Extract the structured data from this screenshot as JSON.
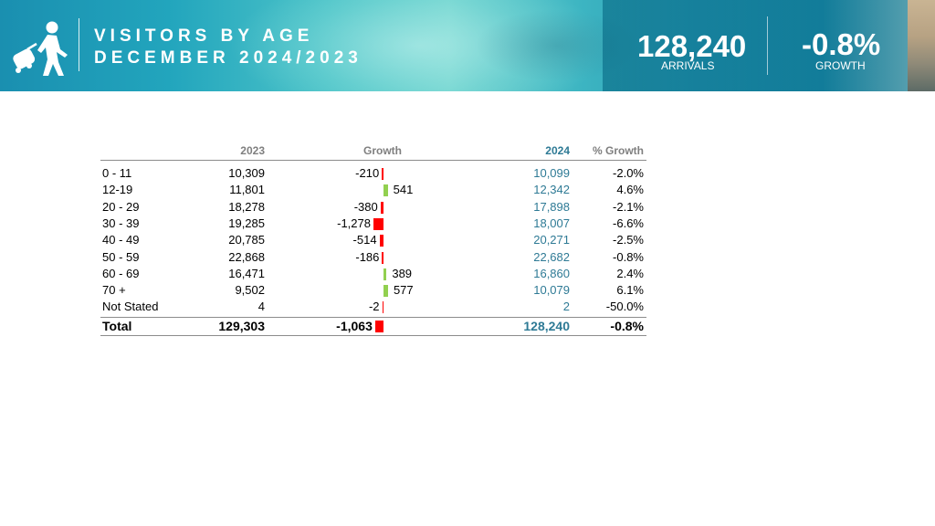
{
  "header": {
    "title_line1": "VISITORS BY AGE",
    "title_line2": "DECEMBER 2024/2023",
    "arrivals_value": "128,240",
    "arrivals_label": "ARRIVALS",
    "growth_value": "-0.8%",
    "growth_label": "GROWTH",
    "icon": "traveler-with-suitcase-icon"
  },
  "table": {
    "columns": [
      "",
      "2023",
      "Growth",
      "2024",
      "% Growth"
    ],
    "rows": [
      {
        "label": "0 - 11",
        "y2023": "10,309",
        "growth": "-210",
        "y2024": "10,099",
        "pct": "-2.0%"
      },
      {
        "label": "12-19",
        "y2023": "11,801",
        "growth": "541",
        "y2024": "12,342",
        "pct": "4.6%"
      },
      {
        "label": "20 - 29",
        "y2023": "18,278",
        "growth": "-380",
        "y2024": "17,898",
        "pct": "-2.1%"
      },
      {
        "label": "30 - 39",
        "y2023": "19,285",
        "growth": "-1,278",
        "y2024": "18,007",
        "pct": "-6.6%"
      },
      {
        "label": "40 - 49",
        "y2023": "20,785",
        "growth": "-514",
        "y2024": "20,271",
        "pct": "-2.5%"
      },
      {
        "label": "50 - 59",
        "y2023": "22,868",
        "growth": "-186",
        "y2024": "22,682",
        "pct": "-0.8%"
      },
      {
        "label": "60 - 69",
        "y2023": "16,471",
        "growth": "389",
        "y2024": "16,860",
        "pct": "2.4%"
      },
      {
        "label": "70 +",
        "y2023": "9,502",
        "growth": "577",
        "y2024": "10,079",
        "pct": "6.1%"
      },
      {
        "label": "Not Stated",
        "y2023": "4",
        "growth": "-2",
        "y2024": "2",
        "pct": "-50.0%"
      }
    ],
    "total": {
      "label": "Total",
      "y2023": "129,303",
      "growth": "-1,063",
      "y2024": "128,240",
      "pct": "-0.8%"
    }
  },
  "chart_data": {
    "type": "bar",
    "categories": [
      "0 - 11",
      "12-19",
      "20 - 29",
      "30 - 39",
      "40 - 49",
      "50 - 59",
      "60 - 69",
      "70 +",
      "Not Stated",
      "Total"
    ],
    "values": [
      -210,
      541,
      -380,
      -1278,
      -514,
      -186,
      389,
      577,
      -2,
      -1063
    ],
    "xlabel": "Growth",
    "negative_color": "#ff0000",
    "positive_color": "#92d050"
  },
  "colors": {
    "value_2024": "#2e7a95",
    "header_grey": "#7f7f7f"
  }
}
